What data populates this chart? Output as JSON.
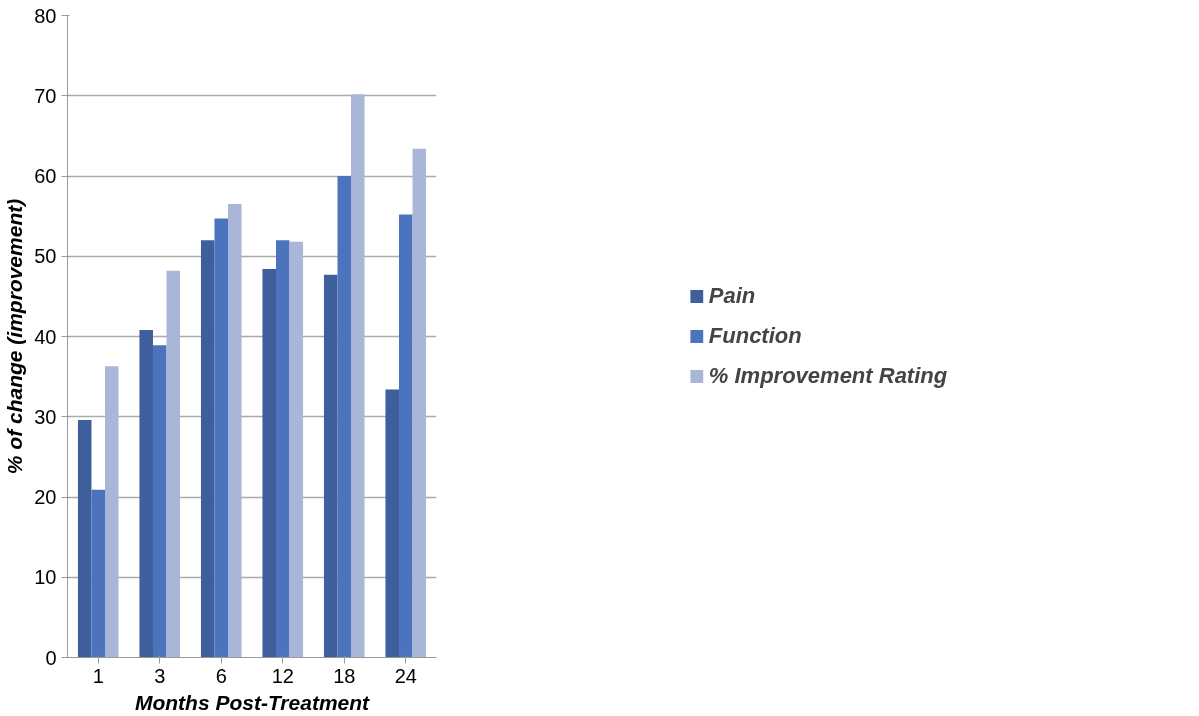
{
  "chart_data": {
    "type": "bar",
    "xlabel": "Months Post-Treatment",
    "ylabel": "% of change (improvement)",
    "categories": [
      "1",
      "3",
      "6",
      "12",
      "18",
      "24"
    ],
    "series": [
      {
        "name": "Pain",
        "color": "#3e5f9b",
        "values": [
          29.6,
          40.8,
          52.0,
          48.4,
          47.7,
          33.4
        ]
      },
      {
        "name": "Function",
        "color": "#4c74bd",
        "values": [
          20.9,
          38.9,
          54.7,
          52.0,
          60.0,
          55.2
        ]
      },
      {
        "name": "% Improvement Rating",
        "color": "#a9b6d8",
        "values": [
          36.3,
          48.2,
          56.5,
          51.8,
          70.2,
          63.4
        ]
      }
    ],
    "ylim": [
      0,
      80
    ],
    "yticks": [
      0,
      10,
      20,
      30,
      40,
      50,
      60,
      70,
      80
    ],
    "grid": "y",
    "legend": "right"
  }
}
